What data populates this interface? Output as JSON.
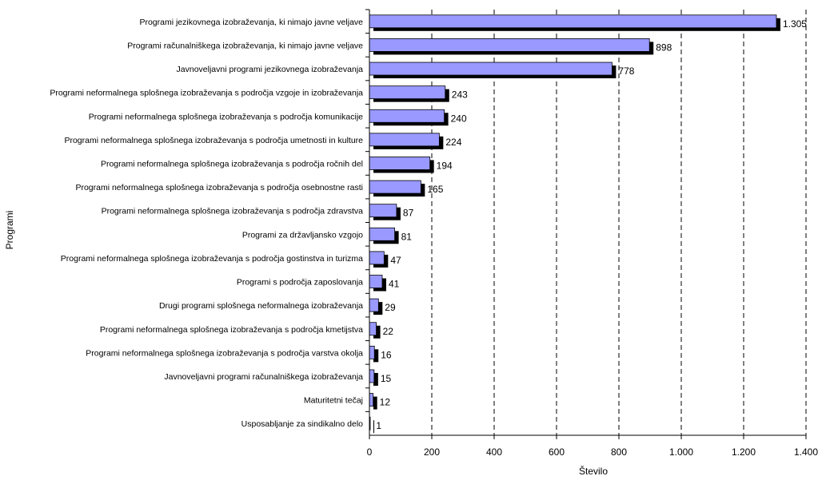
{
  "chart_data": {
    "type": "bar",
    "orientation": "horizontal",
    "categories": [
      "Programi jezikovnega izobraževanja, ki nimajo javne veljave",
      "Programi računalniškega izobraževanja, ki nimajo javne veljave",
      "Javnoveljavni programi jezikovnega izobraževanja",
      "Programi neformalnega splošnega izobraževanja s področja vzgoje in izobraževanja",
      "Programi neformalnega splošnega izobraževanja s področja komunikacije",
      "Programi neformalnega splošnega izobraževanja s področja umetnosti in kulture",
      "Programi neformalnega splošnega izobraževanja s področja ročnih del",
      "Programi neformalnega splošnega izobraževanja s področja osebnostne rasti",
      "Programi neformalnega splošnega izobraževanja s področja zdravstva",
      "Programi za državljansko vzgojo",
      "Programi neformalnega splošnega izobraževanja s področja gostinstva in turizma",
      "Programi s področja zaposlovanja",
      "Drugi programi splošnega neformalnega izobraževanja",
      "Programi neformalnega splošnega izobraževanja s področja kmetijstva",
      "Programi neformalnega splošnega izobraževanja s področja varstva okolja",
      "Javnoveljavni programi računalniškega izobraževanja",
      "Maturitetni tečaj",
      "Usposabljanje za sindikalno delo"
    ],
    "values": [
      1305,
      898,
      778,
      243,
      240,
      224,
      194,
      165,
      87,
      81,
      47,
      41,
      29,
      22,
      16,
      15,
      12,
      1
    ],
    "value_labels": [
      "1.305",
      "898",
      "778",
      "243",
      "240",
      "224",
      "194",
      "165",
      "87",
      "81",
      "47",
      "41",
      "29",
      "22",
      "16",
      "15",
      "12",
      "1"
    ],
    "xlabel": "Število",
    "ylabel": "Programi",
    "xlim": [
      0,
      1400
    ],
    "xticks": [
      0,
      200,
      400,
      600,
      800,
      1000,
      1200,
      1400
    ],
    "xtick_labels": [
      "0",
      "200",
      "400",
      "600",
      "800",
      "1.000",
      "1.200",
      "1.400"
    ],
    "grid": "vertical dashed",
    "colors": {
      "bar": "#9999ff",
      "shadow": "#000000",
      "grid": "#000000"
    }
  }
}
